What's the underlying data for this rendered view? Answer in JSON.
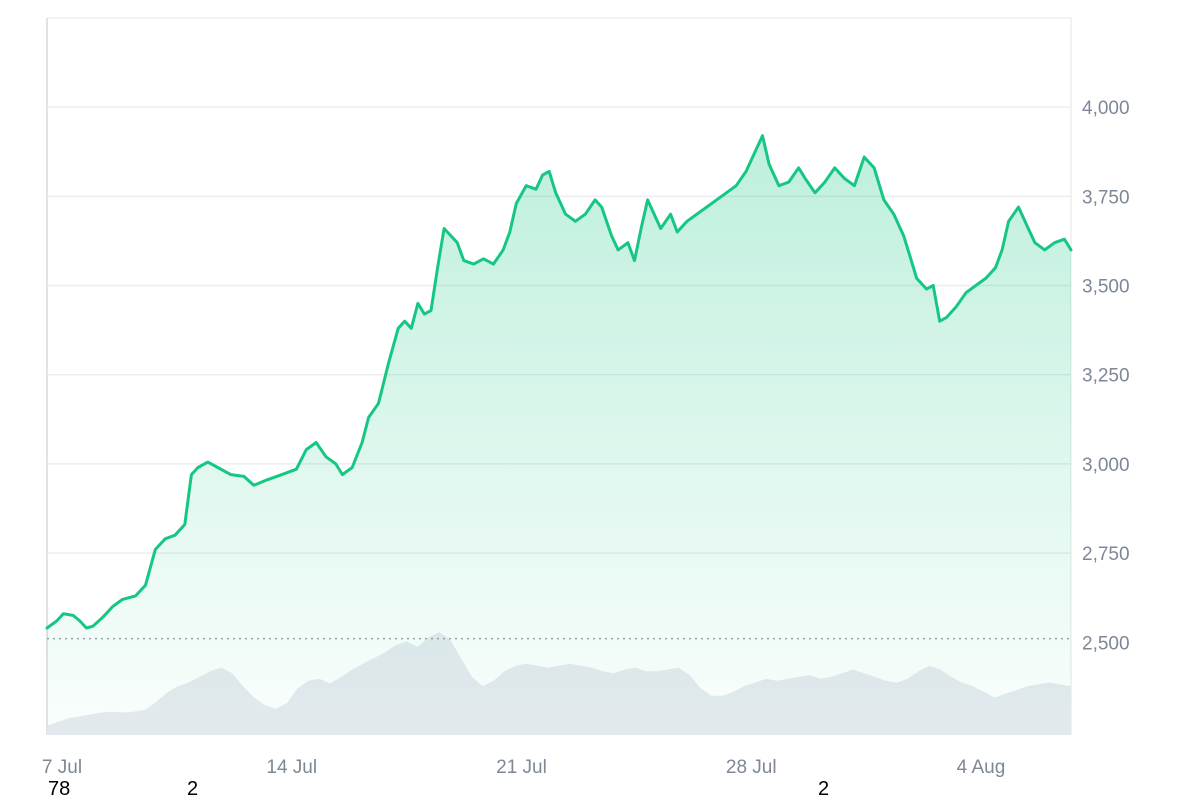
{
  "chart_data": {
    "type": "area",
    "y_ticks": [
      "2,500",
      "2,750",
      "3,000",
      "3,250",
      "3,500",
      "3,750",
      "4,000"
    ],
    "y_tick_values": [
      2500,
      2750,
      3000,
      3250,
      3500,
      3750,
      4000
    ],
    "x_ticks": [
      "7 Jul",
      "14 Jul",
      "21 Jul",
      "28 Jul",
      "4 Aug"
    ],
    "x_tick_days": [
      0,
      7,
      14,
      21,
      28
    ],
    "ylim": [
      2240,
      4250
    ],
    "xlim_days": [
      0,
      31.2
    ],
    "grid": true,
    "baseline": 2510,
    "colors": {
      "line": "#16c784",
      "area_top": "#16c784",
      "volume": "#e7eaef",
      "grid": "#ebedf0",
      "baseline": "#9aa0a6",
      "axis": "#d5d9df"
    },
    "series": [
      {
        "points": [
          [
            0.0,
            2540
          ],
          [
            0.3,
            2560
          ],
          [
            0.5,
            2580
          ],
          [
            0.8,
            2575
          ],
          [
            1.0,
            2560
          ],
          [
            1.2,
            2540
          ],
          [
            1.4,
            2545
          ],
          [
            1.7,
            2570
          ],
          [
            2.0,
            2600
          ],
          [
            2.3,
            2620
          ],
          [
            2.7,
            2630
          ],
          [
            3.0,
            2660
          ],
          [
            3.3,
            2760
          ],
          [
            3.6,
            2790
          ],
          [
            3.9,
            2800
          ],
          [
            4.2,
            2830
          ],
          [
            4.4,
            2970
          ],
          [
            4.6,
            2990
          ],
          [
            4.9,
            3005
          ],
          [
            5.2,
            2990
          ],
          [
            5.6,
            2970
          ],
          [
            6.0,
            2965
          ],
          [
            6.3,
            2940
          ],
          [
            6.7,
            2955
          ],
          [
            7.0,
            2965
          ],
          [
            7.3,
            2975
          ],
          [
            7.6,
            2985
          ],
          [
            7.9,
            3040
          ],
          [
            8.2,
            3060
          ],
          [
            8.5,
            3020
          ],
          [
            8.8,
            3000
          ],
          [
            9.0,
            2970
          ],
          [
            9.3,
            2990
          ],
          [
            9.6,
            3060
          ],
          [
            9.8,
            3130
          ],
          [
            10.1,
            3170
          ],
          [
            10.4,
            3280
          ],
          [
            10.7,
            3380
          ],
          [
            10.9,
            3400
          ],
          [
            11.1,
            3380
          ],
          [
            11.3,
            3450
          ],
          [
            11.5,
            3420
          ],
          [
            11.7,
            3430
          ],
          [
            11.9,
            3550
          ],
          [
            12.1,
            3660
          ],
          [
            12.3,
            3640
          ],
          [
            12.5,
            3620
          ],
          [
            12.7,
            3570
          ],
          [
            13.0,
            3560
          ],
          [
            13.3,
            3575
          ],
          [
            13.6,
            3560
          ],
          [
            13.9,
            3600
          ],
          [
            14.1,
            3650
          ],
          [
            14.3,
            3730
          ],
          [
            14.6,
            3780
          ],
          [
            14.9,
            3770
          ],
          [
            15.1,
            3810
          ],
          [
            15.3,
            3820
          ],
          [
            15.5,
            3760
          ],
          [
            15.8,
            3700
          ],
          [
            16.1,
            3680
          ],
          [
            16.4,
            3700
          ],
          [
            16.7,
            3740
          ],
          [
            16.9,
            3720
          ],
          [
            17.2,
            3640
          ],
          [
            17.4,
            3600
          ],
          [
            17.7,
            3620
          ],
          [
            17.9,
            3570
          ],
          [
            18.1,
            3660
          ],
          [
            18.3,
            3740
          ],
          [
            18.5,
            3700
          ],
          [
            18.7,
            3660
          ],
          [
            19.0,
            3700
          ],
          [
            19.2,
            3650
          ],
          [
            19.5,
            3680
          ],
          [
            19.8,
            3700
          ],
          [
            20.1,
            3720
          ],
          [
            20.4,
            3740
          ],
          [
            20.7,
            3760
          ],
          [
            21.0,
            3780
          ],
          [
            21.3,
            3820
          ],
          [
            21.6,
            3880
          ],
          [
            21.8,
            3920
          ],
          [
            22.0,
            3840
          ],
          [
            22.3,
            3780
          ],
          [
            22.6,
            3790
          ],
          [
            22.9,
            3830
          ],
          [
            23.1,
            3800
          ],
          [
            23.4,
            3760
          ],
          [
            23.7,
            3790
          ],
          [
            24.0,
            3830
          ],
          [
            24.3,
            3800
          ],
          [
            24.6,
            3780
          ],
          [
            24.9,
            3860
          ],
          [
            25.2,
            3830
          ],
          [
            25.5,
            3740
          ],
          [
            25.8,
            3700
          ],
          [
            26.1,
            3640
          ],
          [
            26.3,
            3580
          ],
          [
            26.5,
            3520
          ],
          [
            26.8,
            3490
          ],
          [
            27.0,
            3500
          ],
          [
            27.2,
            3400
          ],
          [
            27.4,
            3410
          ],
          [
            27.7,
            3440
          ],
          [
            28.0,
            3480
          ],
          [
            28.3,
            3500
          ],
          [
            28.6,
            3520
          ],
          [
            28.9,
            3550
          ],
          [
            29.1,
            3600
          ],
          [
            29.3,
            3680
          ],
          [
            29.6,
            3720
          ],
          [
            29.9,
            3660
          ],
          [
            30.1,
            3620
          ],
          [
            30.4,
            3600
          ],
          [
            30.7,
            3620
          ],
          [
            31.0,
            3630
          ],
          [
            31.2,
            3600
          ]
        ]
      }
    ],
    "volume": [
      10,
      14,
      18,
      20,
      22,
      24,
      25,
      24,
      25,
      27,
      35,
      45,
      52,
      56,
      62,
      68,
      72,
      66,
      52,
      40,
      32,
      28,
      34,
      50,
      58,
      60,
      55,
      62,
      70,
      76,
      82,
      88,
      96,
      100,
      94,
      104,
      110,
      102,
      82,
      62,
      52,
      58,
      68,
      74,
      76,
      74,
      72,
      74,
      76,
      74,
      72,
      68,
      66,
      70,
      72,
      68,
      68,
      70,
      72,
      64,
      50,
      42,
      42,
      46,
      52,
      56,
      60,
      58,
      60,
      62,
      64,
      60,
      62,
      66,
      70,
      66,
      62,
      58,
      56,
      60,
      68,
      74,
      70,
      62,
      56,
      52,
      46,
      40,
      44,
      48,
      52,
      54,
      56,
      54,
      52
    ]
  },
  "stray_labels": {
    "a": "78",
    "b": "2",
    "c": "2"
  }
}
